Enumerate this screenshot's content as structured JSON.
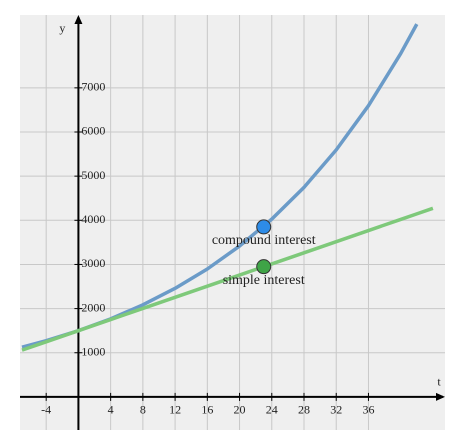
{
  "chart_data": {
    "type": "line",
    "x_label": "t",
    "y_label": "y",
    "x": [
      -7,
      -4,
      0,
      4,
      8,
      12,
      16,
      20,
      24,
      28,
      32,
      36,
      40,
      42,
      44
    ],
    "series": [
      {
        "name": "compound interest",
        "color": "#6b9bc8",
        "values": [
          1125,
          1272,
          1500,
          1768,
          2085,
          2458,
          2897,
          3416,
          4026,
          4746,
          5595,
          6596,
          7776,
          8443,
          null
        ]
      },
      {
        "name": "simple interest",
        "color": "#7ec97a",
        "values": [
          1059,
          1248,
          1500,
          1752,
          2004,
          2256,
          2508,
          2760,
          3012,
          3264,
          3516,
          3768,
          4020,
          4146,
          4272
        ]
      }
    ],
    "points": [
      {
        "label": "compound interest",
        "x": 23,
        "y": 3850,
        "color": "#2d8ce8"
      },
      {
        "label": "simple interest",
        "x": 23,
        "y": 2950,
        "color": "#3fa447"
      }
    ],
    "xlim": [
      -7.25,
      45.5
    ],
    "ylim": [
      -750,
      8650
    ],
    "xticks": [
      -4,
      4,
      8,
      12,
      16,
      20,
      24,
      28,
      32,
      36
    ],
    "yticks": [
      1000,
      2000,
      3000,
      4000,
      5000,
      6000,
      7000
    ],
    "grid": true
  }
}
